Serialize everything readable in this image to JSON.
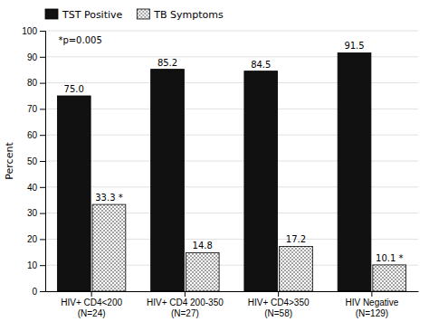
{
  "chart_data": {
    "type": "bar",
    "categories": [
      "HIV+ CD4<200\n(N=24)",
      "HIV+ CD4 200-350\n(N=27)",
      "HIV+ CD4>350\n(N=58)",
      "HIV Negative\n(N=129)"
    ],
    "series": [
      {
        "name": "TST Positive",
        "color": "#111111",
        "values": [
          75.0,
          85.2,
          84.5,
          91.5
        ],
        "value_labels": [
          "75.0",
          "85.2",
          "84.5",
          "91.5"
        ]
      },
      {
        "name": "TB Symptoms",
        "color": "#ffffff",
        "values": [
          33.3,
          14.8,
          17.2,
          10.1
        ],
        "value_labels": [
          "33.3 *",
          "14.8",
          "17.2",
          "10.1 *"
        ]
      }
    ],
    "ylabel": "Percent",
    "ylim": [
      0,
      100
    ],
    "yticks": [
      0,
      10,
      20,
      30,
      40,
      50,
      60,
      70,
      80,
      90,
      100
    ],
    "annotations": [
      "*p=0.005"
    ],
    "grid": true,
    "legend": "upper left",
    "data_labels": true
  }
}
